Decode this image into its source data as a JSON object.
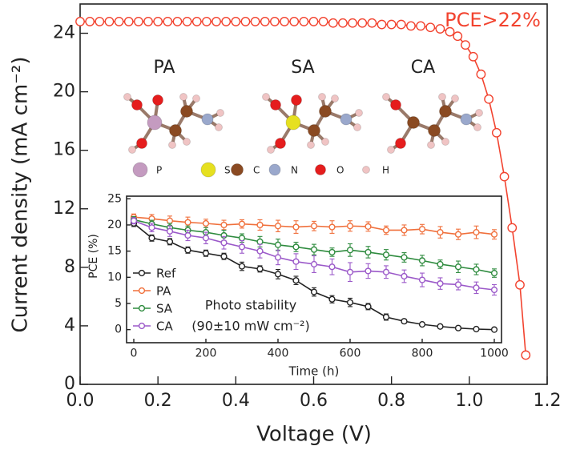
{
  "chart_data": [
    {
      "type": "line",
      "xlabel": "Voltage (V)",
      "ylabel": "Current density (mA cm⁻²)",
      "annotation": "PCE>22%",
      "color": "#f2432f",
      "xlim": [
        0,
        1.2
      ],
      "ylim": [
        0,
        26
      ],
      "xticks": [
        {
          "value": 0,
          "label": "0.0"
        },
        0.2,
        0.4,
        0.6,
        0.8,
        {
          "value": 1,
          "label": "1.0"
        },
        1.2
      ],
      "yticks": [
        0,
        4,
        8,
        12,
        16,
        20,
        24
      ],
      "x": [
        0,
        0.025,
        0.05,
        0.075,
        0.1,
        0.125,
        0.15,
        0.175,
        0.2,
        0.225,
        0.25,
        0.275,
        0.3,
        0.325,
        0.35,
        0.375,
        0.4,
        0.425,
        0.45,
        0.475,
        0.5,
        0.525,
        0.55,
        0.575,
        0.6,
        0.625,
        0.65,
        0.675,
        0.7,
        0.725,
        0.75,
        0.775,
        0.8,
        0.825,
        0.85,
        0.875,
        0.9,
        0.925,
        0.95,
        0.97,
        0.99,
        1.01,
        1.03,
        1.05,
        1.07,
        1.09,
        1.11,
        1.13,
        1.145
      ],
      "values": [
        24.8,
        24.8,
        24.8,
        24.8,
        24.8,
        24.8,
        24.8,
        24.8,
        24.8,
        24.8,
        24.8,
        24.8,
        24.8,
        24.8,
        24.8,
        24.8,
        24.8,
        24.8,
        24.8,
        24.8,
        24.8,
        24.8,
        24.8,
        24.8,
        24.8,
        24.8,
        24.7,
        24.7,
        24.7,
        24.7,
        24.7,
        24.6,
        24.6,
        24.6,
        24.5,
        24.5,
        24.4,
        24.3,
        24.1,
        23.8,
        23.2,
        22.4,
        21.2,
        19.5,
        17.2,
        14.2,
        10.7,
        6.8,
        2.0
      ],
      "molecules": [
        "PA",
        "SA",
        "CA"
      ],
      "atom_legend": [
        {
          "label": "P",
          "color": "#c49bc0"
        },
        {
          "label": "S",
          "color": "#e6e020"
        },
        {
          "label": "C",
          "color": "#8a4a22"
        },
        {
          "label": "N",
          "color": "#9aa8cc"
        },
        {
          "label": "O",
          "color": "#e51d1d"
        },
        {
          "label": "H",
          "color": "#f0c4c4"
        }
      ]
    },
    {
      "type": "line",
      "xlabel": "Time (h)",
      "ylabel": "PCE (%)",
      "annotations": [
        "Photo stability",
        "(90±10 mW cm⁻²)"
      ],
      "xlim": [
        -20,
        1020
      ],
      "ylim": [
        -2.5,
        25.5
      ],
      "xticks": [
        0,
        200,
        400,
        600,
        800,
        1000
      ],
      "yticks": [
        0,
        5,
        10,
        15,
        20,
        25
      ],
      "x": [
        0,
        50,
        100,
        150,
        200,
        250,
        300,
        350,
        400,
        450,
        500,
        550,
        600,
        650,
        700,
        750,
        800,
        850,
        900,
        950,
        1000
      ],
      "series": [
        {
          "name": "Ref",
          "color": "#222222",
          "values": [
            20.3,
            17.5,
            16.8,
            15.2,
            14.6,
            14.0,
            12.1,
            11.6,
            10.6,
            9.4,
            7.2,
            5.8,
            5.2,
            4.4,
            2.4,
            1.6,
            1.0,
            0.6,
            0.3,
            0.1,
            0.0
          ],
          "errors": [
            0.6,
            0.6,
            0.6,
            0.6,
            0.6,
            0.6,
            0.8,
            0.6,
            0.9,
            0.8,
            0.8,
            0.7,
            0.8,
            0.6,
            0.6,
            0.4,
            0.3,
            0.3,
            0.3,
            0.2,
            0.2
          ]
        },
        {
          "name": "PA",
          "color": "#f0703c",
          "values": [
            21.5,
            21.2,
            20.8,
            20.5,
            20.3,
            20.0,
            20.2,
            20.0,
            19.8,
            19.6,
            19.8,
            19.6,
            19.8,
            19.7,
            19.0,
            19.0,
            19.2,
            18.6,
            18.2,
            18.6,
            18.2
          ],
          "errors": [
            0.6,
            0.8,
            0.9,
            1.0,
            0.8,
            0.9,
            0.8,
            1.0,
            1.1,
            1.2,
            0.9,
            1.2,
            1.0,
            0.9,
            0.8,
            1.0,
            0.9,
            1.1,
            1.0,
            1.2,
            0.9
          ]
        },
        {
          "name": "SA",
          "color": "#2e8b3e",
          "values": [
            21.0,
            20.2,
            19.5,
            19.0,
            18.6,
            18.0,
            17.5,
            16.8,
            16.2,
            15.8,
            15.3,
            14.8,
            15.2,
            14.8,
            14.3,
            13.8,
            13.2,
            12.5,
            12.0,
            11.5,
            10.8
          ],
          "errors": [
            0.6,
            0.7,
            0.8,
            0.8,
            0.9,
            1.0,
            0.8,
            1.0,
            1.1,
            0.9,
            1.0,
            0.8,
            1.2,
            1.1,
            1.0,
            0.9,
            1.0,
            0.8,
            1.1,
            1.0,
            0.8
          ]
        },
        {
          "name": "CA",
          "color": "#9b59c9",
          "values": [
            20.8,
            19.5,
            18.8,
            18.0,
            17.5,
            16.6,
            15.8,
            15.0,
            13.8,
            13.0,
            12.5,
            12.0,
            11.0,
            11.2,
            11.0,
            10.2,
            9.5,
            8.8,
            8.6,
            8.0,
            7.6
          ],
          "errors": [
            0.6,
            0.8,
            1.0,
            1.0,
            1.1,
            1.2,
            1.2,
            1.3,
            1.4,
            1.5,
            1.6,
            1.5,
            1.8,
            1.4,
            1.2,
            1.2,
            1.3,
            1.1,
            1.0,
            1.1,
            1.0
          ]
        }
      ]
    }
  ]
}
